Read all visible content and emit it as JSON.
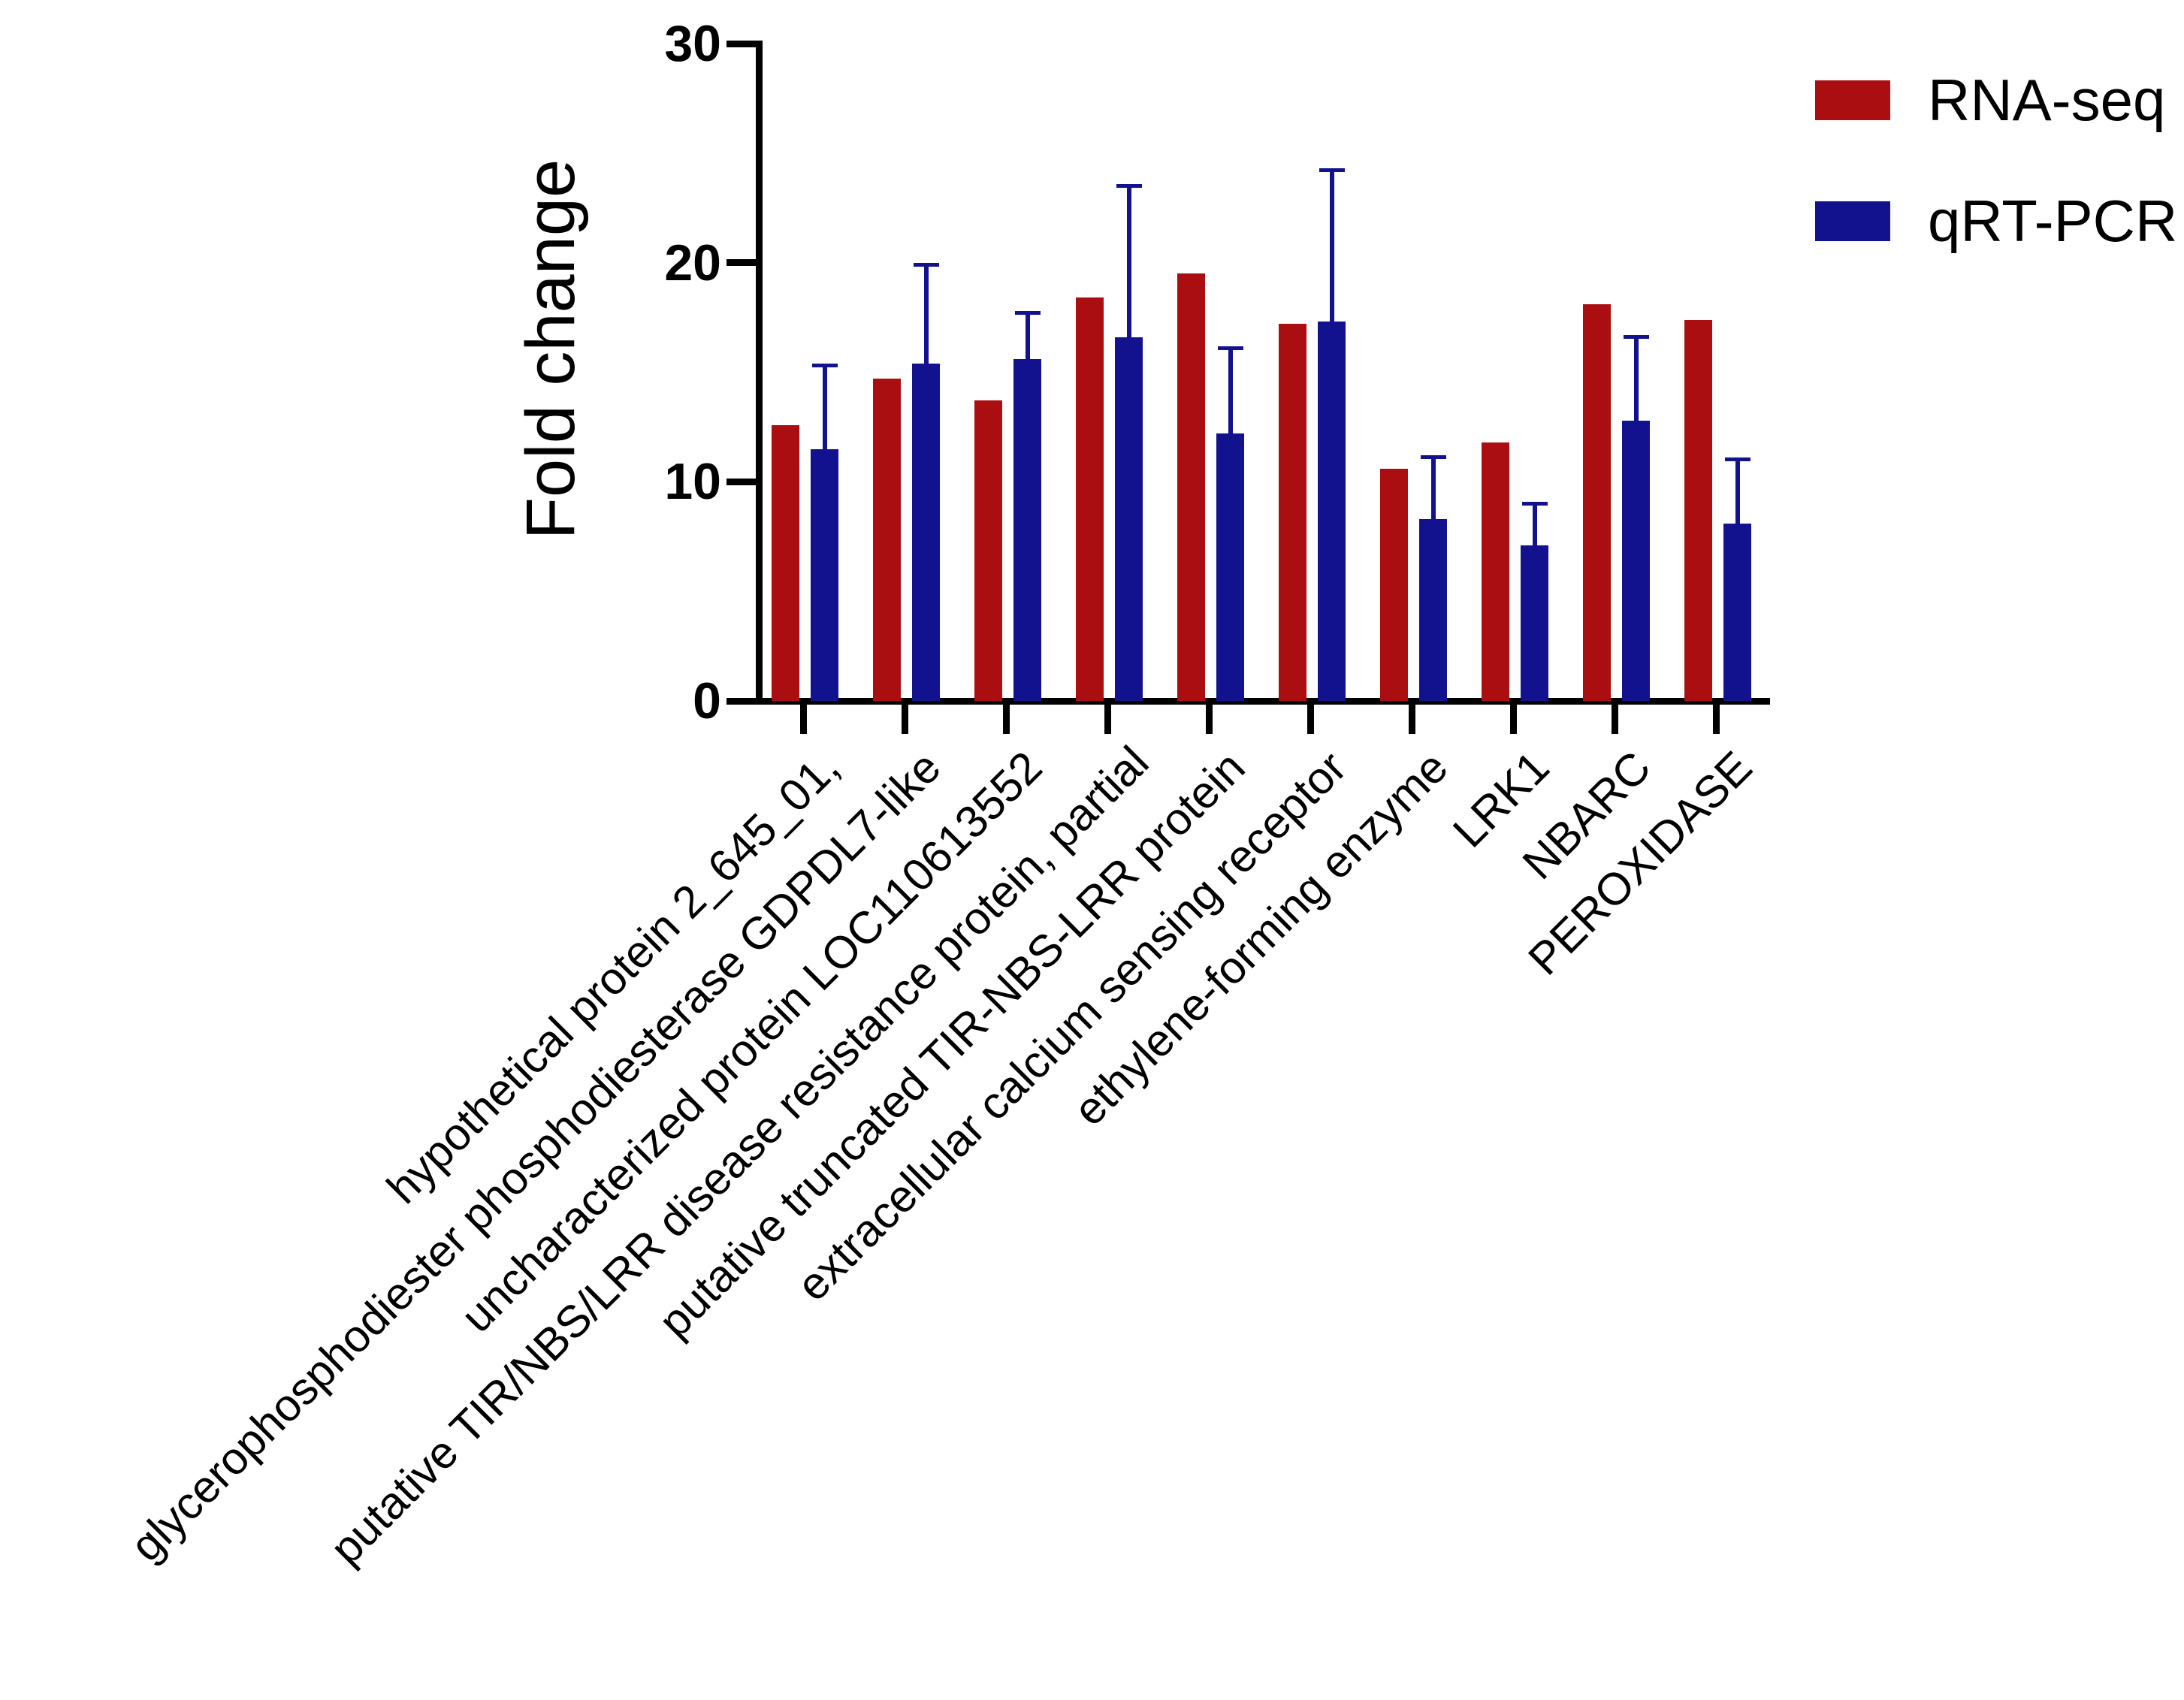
{
  "chart_data": {
    "type": "bar",
    "title": "",
    "ylabel": "Fold change",
    "xlabel": "",
    "ylim": [
      0,
      30
    ],
    "yticks": [
      0,
      10,
      20,
      30
    ],
    "grid": false,
    "legend_position": "top-right",
    "categories": [
      "hypothetical protein 2_645_01,",
      "glycerophosphodiester phosphodiesterase GDPDL7-like",
      "uncharacterized protein LOC110613552",
      "putative TIR/NBS/LRR disease resistance protein, partial",
      "putative truncated TIR-NBS-LRR protein",
      "extracellular calcium sensing receptor",
      "ethylene-forming enzyme",
      "LRK1",
      "NBARC",
      "PEROXIDASE"
    ],
    "series": [
      {
        "name": "RNA-seq",
        "color": "#AB0E11",
        "values": [
          12.6,
          14.7,
          13.7,
          18.4,
          19.5,
          17.2,
          10.6,
          11.8,
          18.1,
          17.4
        ]
      },
      {
        "name": "qRT-PCR",
        "color": "#12128E",
        "values": [
          11.5,
          15.4,
          15.6,
          16.6,
          12.2,
          17.3,
          8.3,
          7.1,
          12.8,
          8.1
        ],
        "error_plus": [
          3.9,
          4.6,
          2.2,
          7.0,
          4.0,
          7.0,
          2.9,
          2.0,
          3.9,
          3.0
        ]
      }
    ]
  }
}
